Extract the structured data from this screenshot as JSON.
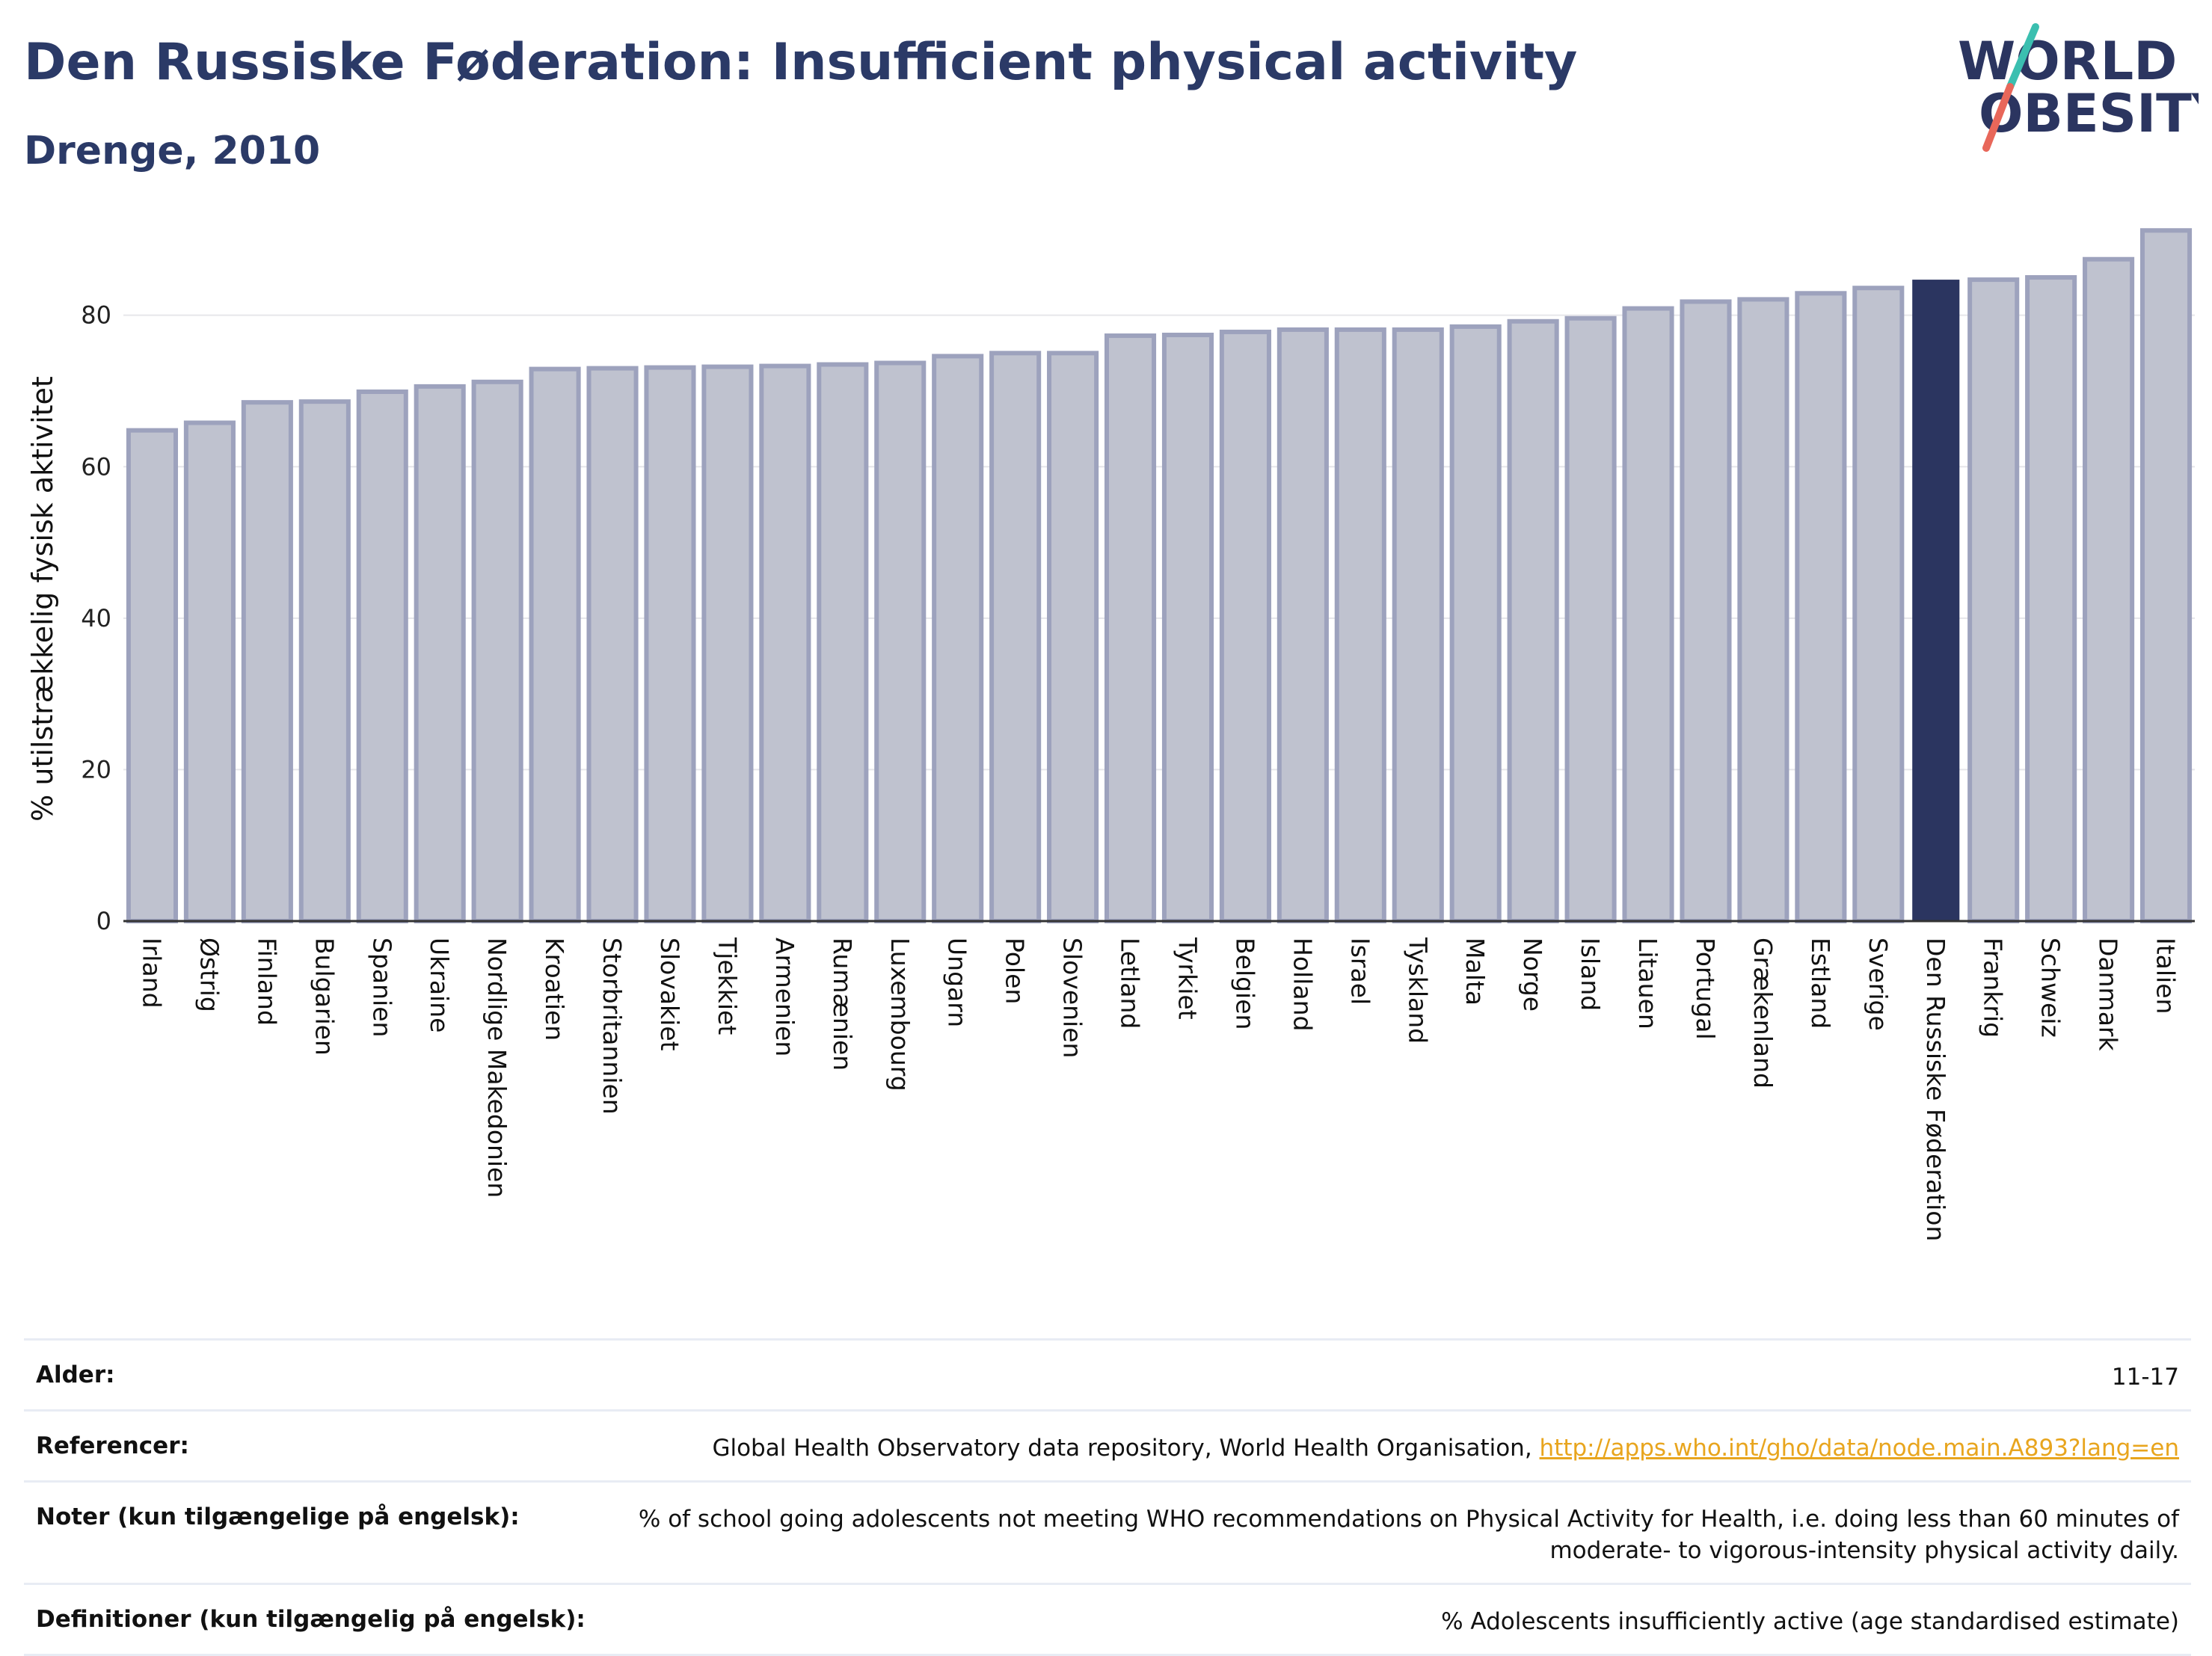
{
  "header": {
    "title": "Den Russiske Føderation: Insufficient physical activity",
    "subtitle": "Drenge, 2010",
    "logo_line1": "WORLD",
    "logo_line2": "OBESITY"
  },
  "colors": {
    "highlight_bar": "#2b3560",
    "other_bar_fill": "#bfc2cf",
    "other_bar_stroke": "#9da2bd",
    "title": "#2b3a67",
    "link": "#e8a51e",
    "logo_teal": "#3bbfb0",
    "logo_coral": "#e8675a"
  },
  "chart_data": {
    "type": "bar",
    "ylabel": "% utilstrækkelig fysisk aktivitet",
    "xlabel": "",
    "ylim": [
      0,
      93
    ],
    "yticks": [
      0,
      20,
      40,
      60,
      80
    ],
    "grid": true,
    "highlight": "Den Russiske Føderation",
    "categories": [
      "Irland",
      "Østrig",
      "Finland",
      "Bulgarien",
      "Spanien",
      "Ukraine",
      "Nordlige Makedonien",
      "Kroatien",
      "Storbritannien",
      "Slovakiet",
      "Tjekkiet",
      "Armenien",
      "Rumænien",
      "Luxembourg",
      "Ungarn",
      "Polen",
      "Slovenien",
      "Letland",
      "Tyrkiet",
      "Belgien",
      "Holland",
      "Israel",
      "Tyskland",
      "Malta",
      "Norge",
      "Island",
      "Litauen",
      "Portugal",
      "Grækenland",
      "Estland",
      "Sverige",
      "Den Russiske Føderation",
      "Frankrig",
      "Schweiz",
      "Danmark",
      "Italien"
    ],
    "values": [
      64.8,
      65.8,
      68.5,
      68.6,
      69.9,
      70.6,
      71.2,
      72.9,
      73.0,
      73.1,
      73.2,
      73.3,
      73.5,
      73.7,
      74.6,
      75.0,
      75.0,
      77.3,
      77.4,
      77.8,
      78.1,
      78.1,
      78.1,
      78.5,
      79.2,
      79.6,
      80.9,
      81.8,
      82.1,
      82.9,
      83.6,
      84.7,
      84.7,
      85.0,
      87.4,
      91.2
    ]
  },
  "meta": {
    "age_label": "Alder:",
    "age_value": "11-17",
    "refs_label": "Referencer:",
    "refs_text": "Global Health Observatory data repository, World Health Organisation, ",
    "refs_link": "http://apps.who.int/gho/data/node.main.A893?lang=en",
    "notes_label": "Noter (kun tilgængelige på engelsk):",
    "notes_value": "% of school going adolescents not meeting WHO recommendations on Physical Activity for Health, i.e. doing less than 60 minutes of moderate- to vigorous-intensity physical activity daily.",
    "defs_label": "Definitioner (kun tilgængelig på engelsk):",
    "defs_value": "% Adolescents insufficiently active (age standardised estimate)"
  }
}
